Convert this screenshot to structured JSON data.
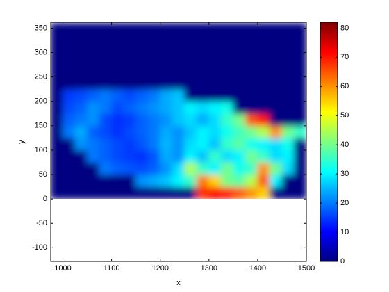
{
  "chart_data": {
    "type": "heatmap",
    "xlabel": "x",
    "ylabel": "y",
    "xlim": [
      975,
      1500
    ],
    "ylim": [
      -128,
      362
    ],
    "xticks": [
      1000,
      1100,
      1200,
      1300,
      1400,
      1500
    ],
    "yticks": [
      -100,
      -50,
      0,
      50,
      100,
      150,
      200,
      250,
      300,
      350
    ],
    "clim": [
      0,
      82
    ],
    "cticks": [
      0,
      10,
      20,
      30,
      40,
      50,
      60,
      70,
      80
    ],
    "colormap": "jet",
    "x_edges": [
      975,
      1000,
      1025,
      1050,
      1075,
      1100,
      1125,
      1150,
      1175,
      1200,
      1225,
      1250,
      1275,
      1300,
      1325,
      1350,
      1375,
      1400,
      1425,
      1450,
      1475,
      1500
    ],
    "y_edges": [
      0,
      25,
      50,
      75,
      100,
      125,
      150,
      175,
      200,
      225,
      360
    ],
    "z": [
      [
        0,
        0,
        0,
        0,
        0,
        0,
        0,
        0,
        0,
        0,
        0,
        0,
        68,
        72,
        70,
        65,
        60,
        55,
        0,
        0,
        0
      ],
      [
        0,
        0,
        0,
        0,
        0,
        0,
        0,
        22,
        24,
        26,
        30,
        35,
        62,
        55,
        40,
        38,
        45,
        65,
        30,
        0,
        0
      ],
      [
        0,
        0,
        0,
        0,
        20,
        18,
        17,
        16,
        18,
        22,
        28,
        45,
        35,
        30,
        40,
        32,
        35,
        60,
        40,
        28,
        0
      ],
      [
        0,
        0,
        0,
        20,
        18,
        16,
        15,
        14,
        17,
        24,
        22,
        30,
        26,
        35,
        28,
        30,
        40,
        35,
        28,
        30,
        0
      ],
      [
        0,
        0,
        22,
        20,
        18,
        16,
        15,
        17,
        20,
        25,
        22,
        28,
        30,
        26,
        35,
        38,
        32,
        30,
        28,
        32,
        0
      ],
      [
        0,
        20,
        24,
        18,
        16,
        14,
        16,
        18,
        20,
        24,
        22,
        26,
        30,
        28,
        32,
        36,
        40,
        45,
        60,
        40,
        35
      ],
      [
        0,
        18,
        20,
        22,
        16,
        14,
        15,
        18,
        20,
        22,
        26,
        28,
        24,
        28,
        35,
        40,
        65,
        70,
        0,
        0,
        0
      ],
      [
        0,
        16,
        18,
        22,
        20,
        16,
        18,
        20,
        22,
        24,
        26,
        30,
        28,
        30,
        32,
        0,
        0,
        0,
        0,
        0,
        0
      ],
      [
        0,
        15,
        16,
        18,
        20,
        18,
        16,
        18,
        20,
        24,
        26,
        0,
        0,
        0,
        0,
        0,
        0,
        0,
        0,
        0,
        0
      ],
      [
        0,
        0,
        0,
        0,
        0,
        0,
        0,
        0,
        0,
        0,
        0,
        0,
        0,
        0,
        0,
        0,
        0,
        0,
        0,
        0,
        0
      ]
    ]
  }
}
